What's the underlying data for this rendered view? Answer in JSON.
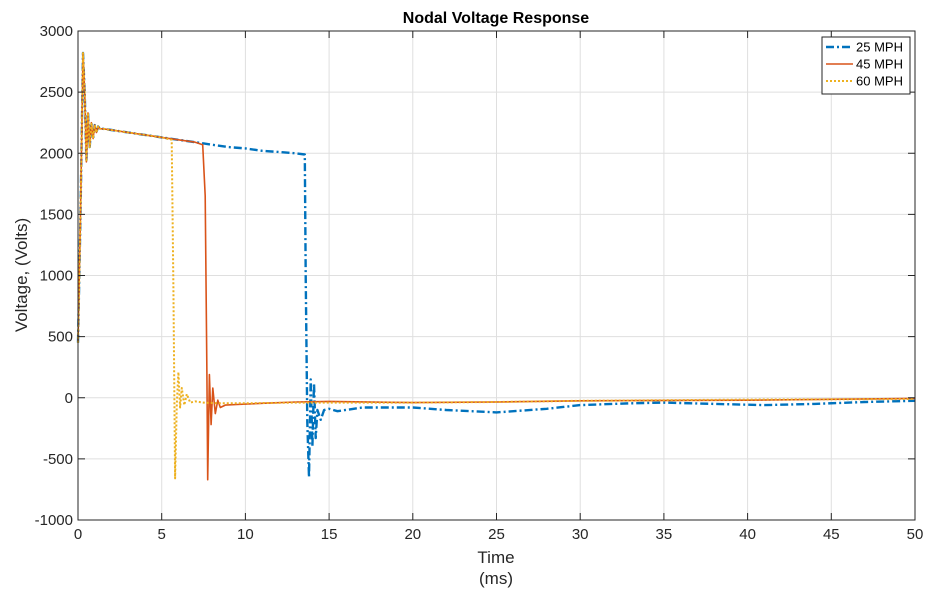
{
  "chart_data": {
    "type": "line",
    "title": "Nodal Voltage Response",
    "xlabel": [
      "Time",
      "(ms)"
    ],
    "ylabel": "Voltage, (Volts)",
    "xlim": [
      0,
      50
    ],
    "ylim": [
      -1000,
      3000
    ],
    "xticks": [
      0,
      5,
      10,
      15,
      20,
      25,
      30,
      35,
      40,
      45,
      50
    ],
    "yticks": [
      -1000,
      -500,
      0,
      500,
      1000,
      1500,
      2000,
      2500,
      3000
    ],
    "grid": true,
    "legend_position": "top-right",
    "series": [
      {
        "name": "25 MPH",
        "color": "#0072BD",
        "style": "dash-dot",
        "x": [
          0.0,
          0.15,
          0.3,
          0.4,
          0.5,
          0.6,
          0.7,
          0.8,
          0.9,
          1.0,
          1.1,
          1.2,
          1.3,
          1.5,
          2.0,
          3.0,
          4.0,
          5.0,
          6.0,
          7.0,
          8.0,
          9.0,
          10.0,
          11.0,
          12.0,
          13.0,
          13.55,
          13.6,
          13.7,
          13.8,
          13.9,
          14.0,
          14.1,
          14.2,
          14.3,
          14.5,
          14.7,
          15.0,
          15.5,
          17.0,
          20.0,
          22.0,
          25.0,
          28.0,
          30.0,
          33.0,
          35.0,
          38.0,
          41.0,
          44.0,
          47.0,
          50.0
        ],
        "y": [
          450,
          1500,
          2820,
          2500,
          1930,
          2330,
          2050,
          2250,
          2120,
          2230,
          2170,
          2220,
          2200,
          2200,
          2190,
          2170,
          2150,
          2130,
          2110,
          2090,
          2070,
          2050,
          2040,
          2020,
          2010,
          2000,
          1990,
          1000,
          -200,
          -650,
          150,
          -400,
          120,
          -330,
          -100,
          -180,
          -100,
          -90,
          -110,
          -80,
          -80,
          -100,
          -120,
          -90,
          -60,
          -45,
          -40,
          -50,
          -60,
          -50,
          -35,
          -25
        ]
      },
      {
        "name": "45 MPH",
        "color": "#D95319",
        "style": "solid",
        "x": [
          0.0,
          0.15,
          0.3,
          0.4,
          0.5,
          0.6,
          0.7,
          0.8,
          0.9,
          1.0,
          1.1,
          1.2,
          1.3,
          1.5,
          2.0,
          3.0,
          4.0,
          5.0,
          6.0,
          7.0,
          7.45,
          7.6,
          7.7,
          7.75,
          7.85,
          7.95,
          8.05,
          8.2,
          8.35,
          8.5,
          8.8,
          9.5,
          11.0,
          13.0,
          15.0,
          20.0,
          25.0,
          30.0,
          40.0,
          50.0
        ],
        "y": [
          450,
          1500,
          2820,
          2500,
          1930,
          2330,
          2050,
          2250,
          2120,
          2230,
          2170,
          2220,
          2200,
          2200,
          2190,
          2170,
          2150,
          2130,
          2110,
          2090,
          2070,
          1650,
          200,
          -670,
          190,
          -220,
          80,
          -130,
          -20,
          -80,
          -60,
          -55,
          -45,
          -35,
          -30,
          -40,
          -35,
          -25,
          -20,
          -5
        ]
      },
      {
        "name": "60 MPH",
        "color": "#EDB120",
        "style": "dotted",
        "x": [
          0.0,
          0.15,
          0.3,
          0.4,
          0.5,
          0.6,
          0.7,
          0.8,
          0.9,
          1.0,
          1.1,
          1.2,
          1.3,
          1.5,
          2.0,
          3.0,
          4.0,
          5.0,
          5.6,
          5.7,
          5.8,
          5.9,
          6.0,
          6.1,
          6.2,
          6.35,
          6.5,
          6.7,
          7.0,
          7.5,
          8.5,
          10.0,
          13.0,
          15.0,
          20.0,
          25.0,
          30.0,
          40.0,
          50.0
        ],
        "y": [
          450,
          1500,
          2820,
          2500,
          1930,
          2330,
          2050,
          2250,
          2120,
          2230,
          2170,
          2220,
          2200,
          2200,
          2190,
          2170,
          2150,
          2130,
          2110,
          900,
          -660,
          -50,
          210,
          -80,
          80,
          -60,
          30,
          -40,
          -30,
          -40,
          -45,
          -45,
          -40,
          -40,
          -40,
          -35,
          -25,
          -15,
          -10
        ]
      }
    ]
  }
}
